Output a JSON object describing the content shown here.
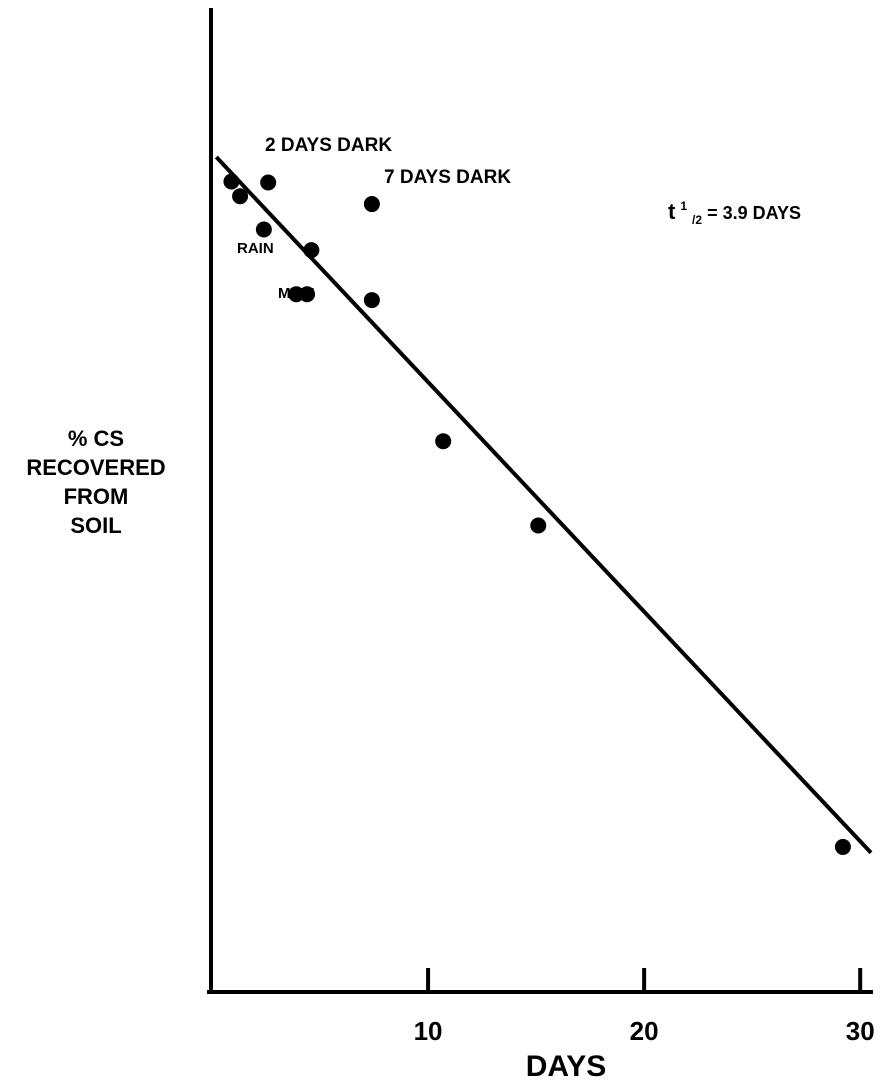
{
  "chart_data": {
    "type": "scatter",
    "title": "",
    "xlabel": "DAYS",
    "ylabel_lines": [
      "% CS",
      "RECOVERED",
      "FROM",
      "SOIL"
    ],
    "xlim": [
      0,
      30.5
    ],
    "ylim": [
      0,
      1
    ],
    "xticks": [
      10,
      20,
      30
    ],
    "xtick_labels": [
      "10",
      "20",
      "30"
    ],
    "grid": false,
    "points": [
      {
        "x": 0.9,
        "y": 0.825
      },
      {
        "x": 1.3,
        "y": 0.81
      },
      {
        "x": 2.4,
        "y": 0.776
      },
      {
        "x": 2.6,
        "y": 0.824
      },
      {
        "x": 3.9,
        "y": 0.71
      },
      {
        "x": 4.4,
        "y": 0.71
      },
      {
        "x": 4.6,
        "y": 0.755
      },
      {
        "x": 7.4,
        "y": 0.802
      },
      {
        "x": 7.4,
        "y": 0.704
      },
      {
        "x": 10.7,
        "y": 0.56
      },
      {
        "x": 15.1,
        "y": 0.474
      },
      {
        "x": 29.2,
        "y": 0.146
      }
    ],
    "fit_line": {
      "x": [
        0.2,
        30.5
      ],
      "y": [
        0.85,
        0.14
      ]
    },
    "annotations": {
      "two_days_dark": "2 DAYS DARK",
      "seven_days_dark": "7 DAYS DARK",
      "rain": "RAIN",
      "mist": "MIST",
      "half_life_symbol": "t",
      "half_life_super": "1",
      "half_life_sub": "/2",
      "half_life_value": " = 3.9 DAYS"
    }
  }
}
